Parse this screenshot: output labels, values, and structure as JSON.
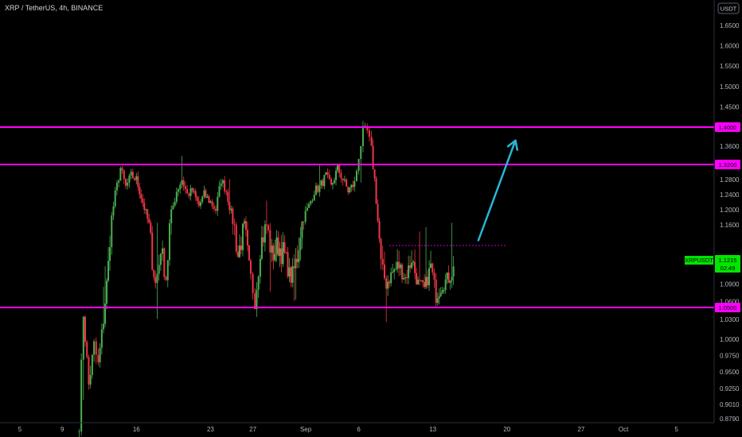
{
  "header": {
    "title": "XRP / TetherUS, 4h, BINANCE"
  },
  "chart_data": {
    "type": "candlestick",
    "title": "XRP / TetherUS, 4h, BINANCE",
    "currency": "USDT",
    "symbol": "XRPUSDT",
    "last_price": "1.1215",
    "countdown": "02:49",
    "ylim": [
      0.875,
      1.7
    ],
    "y_ticks": [
      "1.6500",
      "1.6000",
      "1.5500",
      "1.5000",
      "1.4500",
      "1.4000",
      "1.3600",
      "1.3200",
      "1.2800",
      "1.2400",
      "1.2000",
      "1.1600",
      "1.1200",
      "1.0900",
      "1.0600",
      "1.0300",
      "1.0000",
      "0.9750",
      "0.9500",
      "0.9250",
      "0.9010",
      "0.8790"
    ],
    "y_tick_values": [
      1.65,
      1.6,
      1.55,
      1.5,
      1.45,
      1.4,
      1.36,
      1.32,
      1.28,
      1.24,
      1.2,
      1.16,
      1.12,
      1.09,
      1.06,
      1.03,
      1.0,
      0.975,
      0.95,
      0.925,
      0.901,
      0.879
    ],
    "x_ticks": [
      "5",
      "9",
      "16",
      "23",
      "27",
      "Sep",
      "6",
      "13",
      "20",
      "27",
      "Oct",
      "5"
    ],
    "x_tick_days": [
      5,
      9,
      16,
      23,
      27,
      32,
      37,
      44,
      51,
      58,
      62,
      67
    ],
    "horizontal_levels": [
      {
        "value": 1.4,
        "label": "1.4000",
        "color": "#ff00ff"
      },
      {
        "value": 1.32,
        "label": "1.3200",
        "color": "#ff00ff"
      },
      {
        "value": 1.05,
        "label": "1.0500",
        "color": "#ff00ff"
      }
    ],
    "dotted_level": {
      "value": 1.14,
      "from_day": 39.9,
      "to_day": 51.0,
      "color": "#ff00ff"
    },
    "arrow": {
      "from": [
        48.3,
        1.145
      ],
      "to": [
        51.8,
        1.372
      ],
      "color": "#29b6d6"
    },
    "colors": {
      "up": "#4caf50",
      "down": "#f23645"
    },
    "candle_path": [
      [
        10.6,
        0.876
      ],
      [
        11.0,
        1.04
      ],
      [
        11.5,
        0.93
      ],
      [
        12.0,
        0.99
      ],
      [
        12.4,
        0.96
      ],
      [
        12.9,
        1.03
      ],
      [
        13.5,
        1.15
      ],
      [
        14.0,
        1.24
      ],
      [
        14.5,
        1.31
      ],
      [
        15.0,
        1.26
      ],
      [
        15.5,
        1.29
      ],
      [
        16.0,
        1.28
      ],
      [
        16.6,
        1.22
      ],
      [
        17.2,
        1.16
      ],
      [
        17.8,
        1.09
      ],
      [
        18.3,
        1.14
      ],
      [
        18.8,
        1.1
      ],
      [
        19.3,
        1.19
      ],
      [
        19.8,
        1.25
      ],
      [
        20.3,
        1.28
      ],
      [
        20.8,
        1.24
      ],
      [
        21.3,
        1.25
      ],
      [
        21.9,
        1.21
      ],
      [
        22.4,
        1.24
      ],
      [
        23.0,
        1.22
      ],
      [
        23.5,
        1.2
      ],
      [
        24.0,
        1.28
      ],
      [
        24.5,
        1.25
      ],
      [
        25.1,
        1.17
      ],
      [
        25.6,
        1.13
      ],
      [
        26.2,
        1.16
      ],
      [
        26.8,
        1.1
      ],
      [
        27.2,
        1.06
      ],
      [
        27.7,
        1.14
      ],
      [
        28.3,
        1.16
      ],
      [
        28.8,
        1.13
      ],
      [
        29.4,
        1.14
      ],
      [
        30.0,
        1.13
      ],
      [
        30.6,
        1.1
      ],
      [
        31.2,
        1.13
      ],
      [
        31.8,
        1.18
      ],
      [
        32.3,
        1.21
      ],
      [
        32.8,
        1.25
      ],
      [
        33.3,
        1.26
      ],
      [
        33.9,
        1.29
      ],
      [
        34.4,
        1.26
      ],
      [
        35.0,
        1.31
      ],
      [
        35.5,
        1.28
      ],
      [
        36.0,
        1.25
      ],
      [
        36.6,
        1.27
      ],
      [
        37.0,
        1.34
      ],
      [
        37.4,
        1.39
      ],
      [
        37.8,
        1.39
      ],
      [
        38.2,
        1.35
      ],
      [
        38.5,
        1.28
      ],
      [
        38.8,
        1.17
      ],
      [
        39.1,
        1.12
      ],
      [
        39.6,
        1.09
      ],
      [
        40.2,
        1.11
      ],
      [
        40.8,
        1.12
      ],
      [
        41.4,
        1.1
      ],
      [
        42.0,
        1.13
      ],
      [
        42.6,
        1.09
      ],
      [
        43.2,
        1.08
      ],
      [
        43.8,
        1.12
      ],
      [
        44.3,
        1.07
      ],
      [
        44.9,
        1.09
      ],
      [
        45.5,
        1.1
      ],
      [
        46.1,
        1.12
      ]
    ]
  }
}
